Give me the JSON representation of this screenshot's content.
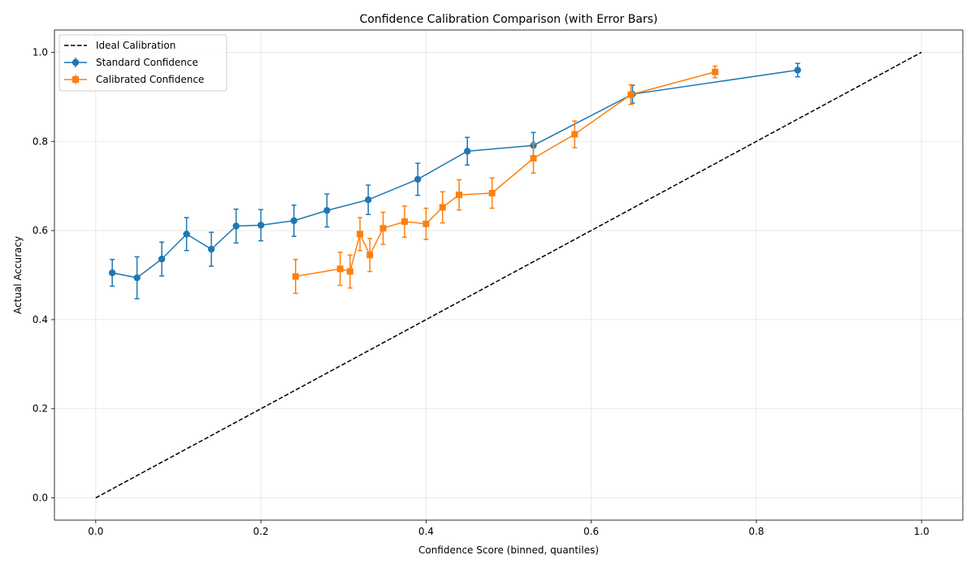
{
  "chart_data": {
    "type": "line",
    "title": "Confidence Calibration Comparison (with Error Bars)",
    "xlabel": "Confidence Score (binned, quantiles)",
    "ylabel": "Actual Accuracy",
    "xlim": [
      -0.05,
      1.05
    ],
    "ylim": [
      -0.05,
      1.05
    ],
    "xticks": [
      "0.0",
      "0.2",
      "0.4",
      "0.6",
      "0.8",
      "1.0"
    ],
    "yticks": [
      "0.0",
      "0.2",
      "0.4",
      "0.6",
      "0.8",
      "1.0"
    ],
    "grid": true,
    "legend_position": "top-left",
    "legend": [
      "Ideal Calibration",
      "Standard Confidence",
      "Calibrated Confidence"
    ],
    "series": [
      {
        "name": "Ideal Calibration",
        "style": "dashed",
        "color": "#000000",
        "x": [
          0.0,
          1.0
        ],
        "y": [
          0.0,
          1.0
        ]
      },
      {
        "name": "Standard Confidence",
        "marker": "circle",
        "color": "#1f77b4",
        "x": [
          0.02,
          0.05,
          0.08,
          0.11,
          0.14,
          0.17,
          0.2,
          0.24,
          0.28,
          0.33,
          0.39,
          0.45,
          0.53,
          0.65,
          0.85
        ],
        "y": [
          0.505,
          0.494,
          0.536,
          0.592,
          0.558,
          0.61,
          0.612,
          0.622,
          0.645,
          0.669,
          0.715,
          0.778,
          0.791,
          0.906,
          0.96
        ],
        "err": [
          0.03,
          0.047,
          0.038,
          0.037,
          0.038,
          0.038,
          0.035,
          0.035,
          0.037,
          0.033,
          0.036,
          0.031,
          0.029,
          0.02,
          0.015
        ]
      },
      {
        "name": "Calibrated Confidence",
        "marker": "square",
        "color": "#ff7f0e",
        "x": [
          0.242,
          0.296,
          0.308,
          0.32,
          0.332,
          0.348,
          0.374,
          0.4,
          0.42,
          0.44,
          0.48,
          0.53,
          0.58,
          0.648,
          0.75
        ],
        "y": [
          0.497,
          0.514,
          0.508,
          0.592,
          0.545,
          0.605,
          0.62,
          0.615,
          0.652,
          0.68,
          0.684,
          0.762,
          0.816,
          0.905,
          0.956
        ],
        "err": [
          0.038,
          0.037,
          0.037,
          0.037,
          0.037,
          0.036,
          0.035,
          0.035,
          0.035,
          0.034,
          0.034,
          0.033,
          0.03,
          0.022,
          0.013
        ]
      }
    ]
  }
}
